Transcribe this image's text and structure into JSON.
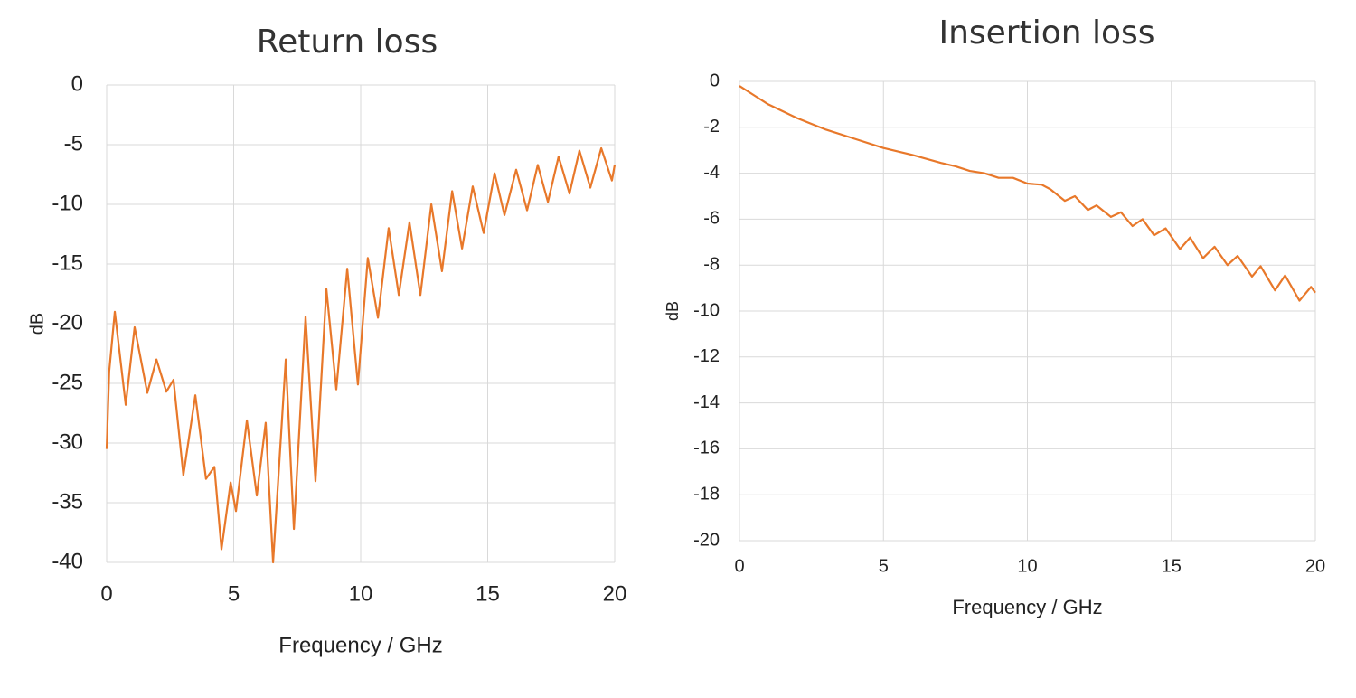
{
  "chart_data": [
    {
      "type": "line",
      "title": "Return loss",
      "xlabel": "Frequency / GHz",
      "ylabel": "dB",
      "color": "#e8782a",
      "grid": true,
      "xlim": [
        0,
        20
      ],
      "xticks": [
        0,
        5,
        10,
        15,
        20
      ],
      "ylim": [
        -40,
        0
      ],
      "yticks": [
        0,
        -5,
        -10,
        -15,
        -20,
        -25,
        -30,
        -35,
        -40
      ],
      "x": [
        0,
        0.1,
        0.32,
        0.75,
        1.1,
        1.6,
        1.96,
        2.35,
        2.63,
        3.02,
        3.49,
        3.91,
        4.24,
        4.52,
        4.88,
        5.09,
        5.52,
        5.91,
        6.26,
        6.55,
        7.05,
        7.37,
        7.83,
        8.22,
        8.65,
        9.04,
        9.47,
        9.89,
        10.28,
        10.68,
        11.1,
        11.5,
        11.92,
        12.35,
        12.78,
        13.2,
        13.6,
        13.99,
        14.41,
        14.84,
        15.27,
        15.66,
        16.12,
        16.55,
        16.97,
        17.37,
        17.79,
        18.22,
        18.61,
        19.04,
        19.47,
        19.89,
        20
      ],
      "values": [
        -30.5,
        -24,
        -19,
        -26.8,
        -20.3,
        -25.8,
        -23,
        -25.7,
        -24.7,
        -32.7,
        -26,
        -33,
        -32,
        -38.9,
        -33.3,
        -35.7,
        -28.1,
        -34.4,
        -28.3,
        -40,
        -23,
        -37.2,
        -19.4,
        -33.2,
        -17.1,
        -25.5,
        -15.4,
        -25.1,
        -14.5,
        -19.5,
        -12,
        -17.6,
        -11.5,
        -17.6,
        -10,
        -15.6,
        -8.9,
        -13.7,
        -8.5,
        -12.4,
        -7.4,
        -10.9,
        -7.1,
        -10.5,
        -6.7,
        -9.8,
        -6,
        -9.1,
        -5.5,
        -8.6,
        -5.3,
        -8,
        -6.7
      ]
    },
    {
      "type": "line",
      "title": "Insertion loss",
      "xlabel": "Frequency / GHz",
      "ylabel": "dB",
      "color": "#e8782a",
      "grid": true,
      "xlim": [
        0,
        20
      ],
      "xticks": [
        0,
        5,
        10,
        15,
        20
      ],
      "ylim": [
        -20,
        0
      ],
      "yticks": [
        0,
        -2,
        -4,
        -6,
        -8,
        -10,
        -12,
        -14,
        -16,
        -18,
        -20
      ],
      "x": [
        0,
        0.5,
        1,
        1.5,
        2,
        3,
        4,
        5,
        6,
        7,
        7.5,
        8,
        8.5,
        9,
        9.5,
        10,
        10.5,
        10.8,
        11.3,
        11.65,
        12.1,
        12.4,
        12.9,
        13.25,
        13.65,
        14.0,
        14.4,
        14.8,
        15.3,
        15.65,
        16.1,
        16.5,
        16.95,
        17.3,
        17.8,
        18.1,
        18.6,
        18.95,
        19.45,
        19.85,
        20
      ],
      "values": [
        -0.2,
        -0.6,
        -1.0,
        -1.3,
        -1.6,
        -2.1,
        -2.5,
        -2.9,
        -3.2,
        -3.55,
        -3.7,
        -3.9,
        -4.0,
        -4.2,
        -4.2,
        -4.45,
        -4.5,
        -4.7,
        -5.2,
        -5.0,
        -5.6,
        -5.4,
        -5.9,
        -5.7,
        -6.3,
        -6.0,
        -6.7,
        -6.4,
        -7.3,
        -6.8,
        -7.7,
        -7.2,
        -8.0,
        -7.6,
        -8.5,
        -8.05,
        -9.1,
        -8.45,
        -9.55,
        -8.95,
        -9.2
      ]
    }
  ]
}
